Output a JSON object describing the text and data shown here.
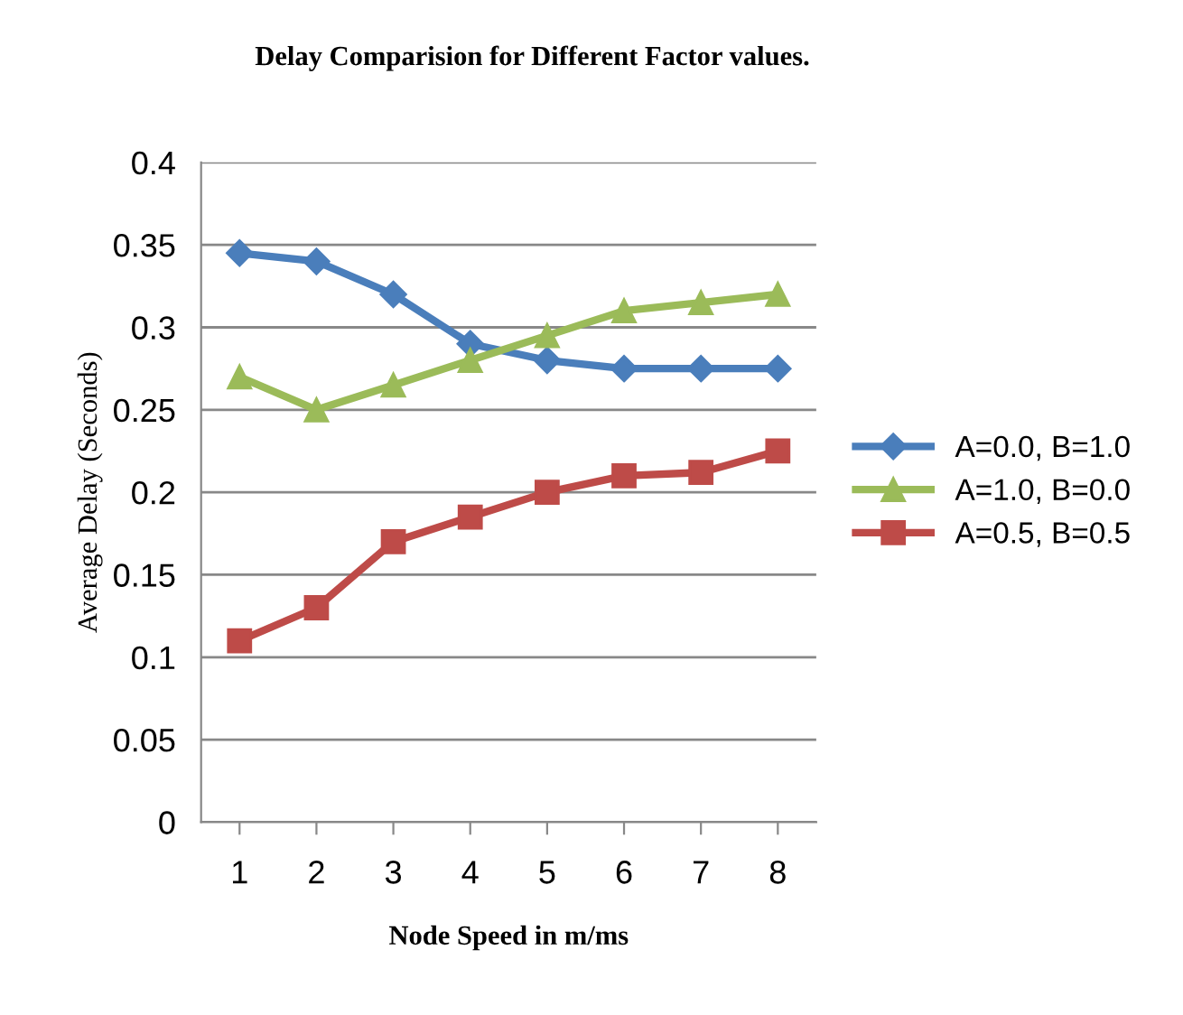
{
  "chart_data": {
    "type": "line",
    "title": "Delay Comparision for Different Factor values.",
    "xlabel": "Node Speed in m/ms",
    "ylabel": "Average Delay (Seconds)",
    "categories": [
      "1",
      "2",
      "3",
      "4",
      "5",
      "6",
      "7",
      "8"
    ],
    "series": [
      {
        "name": "A=0.0, B=1.0",
        "color": "#4a7ebb",
        "marker": "diamond",
        "values": [
          0.345,
          0.34,
          0.32,
          0.29,
          0.28,
          0.275,
          0.275,
          0.275
        ]
      },
      {
        "name": "A=1.0, B=0.0",
        "color": "#9bbb59",
        "marker": "triangle",
        "values": [
          0.27,
          0.25,
          0.265,
          0.28,
          0.295,
          0.31,
          0.315,
          0.32
        ]
      },
      {
        "name": "A=0.5, B=0.5",
        "color": "#be4b48",
        "marker": "square",
        "values": [
          0.11,
          0.13,
          0.17,
          0.185,
          0.2,
          0.21,
          0.212,
          0.225
        ]
      }
    ],
    "ylim": [
      0,
      0.4
    ],
    "yticks": [
      0,
      0.05,
      0.1,
      0.15,
      0.2,
      0.25,
      0.3,
      0.35,
      0.4
    ],
    "grid": "y",
    "legend": "right"
  }
}
